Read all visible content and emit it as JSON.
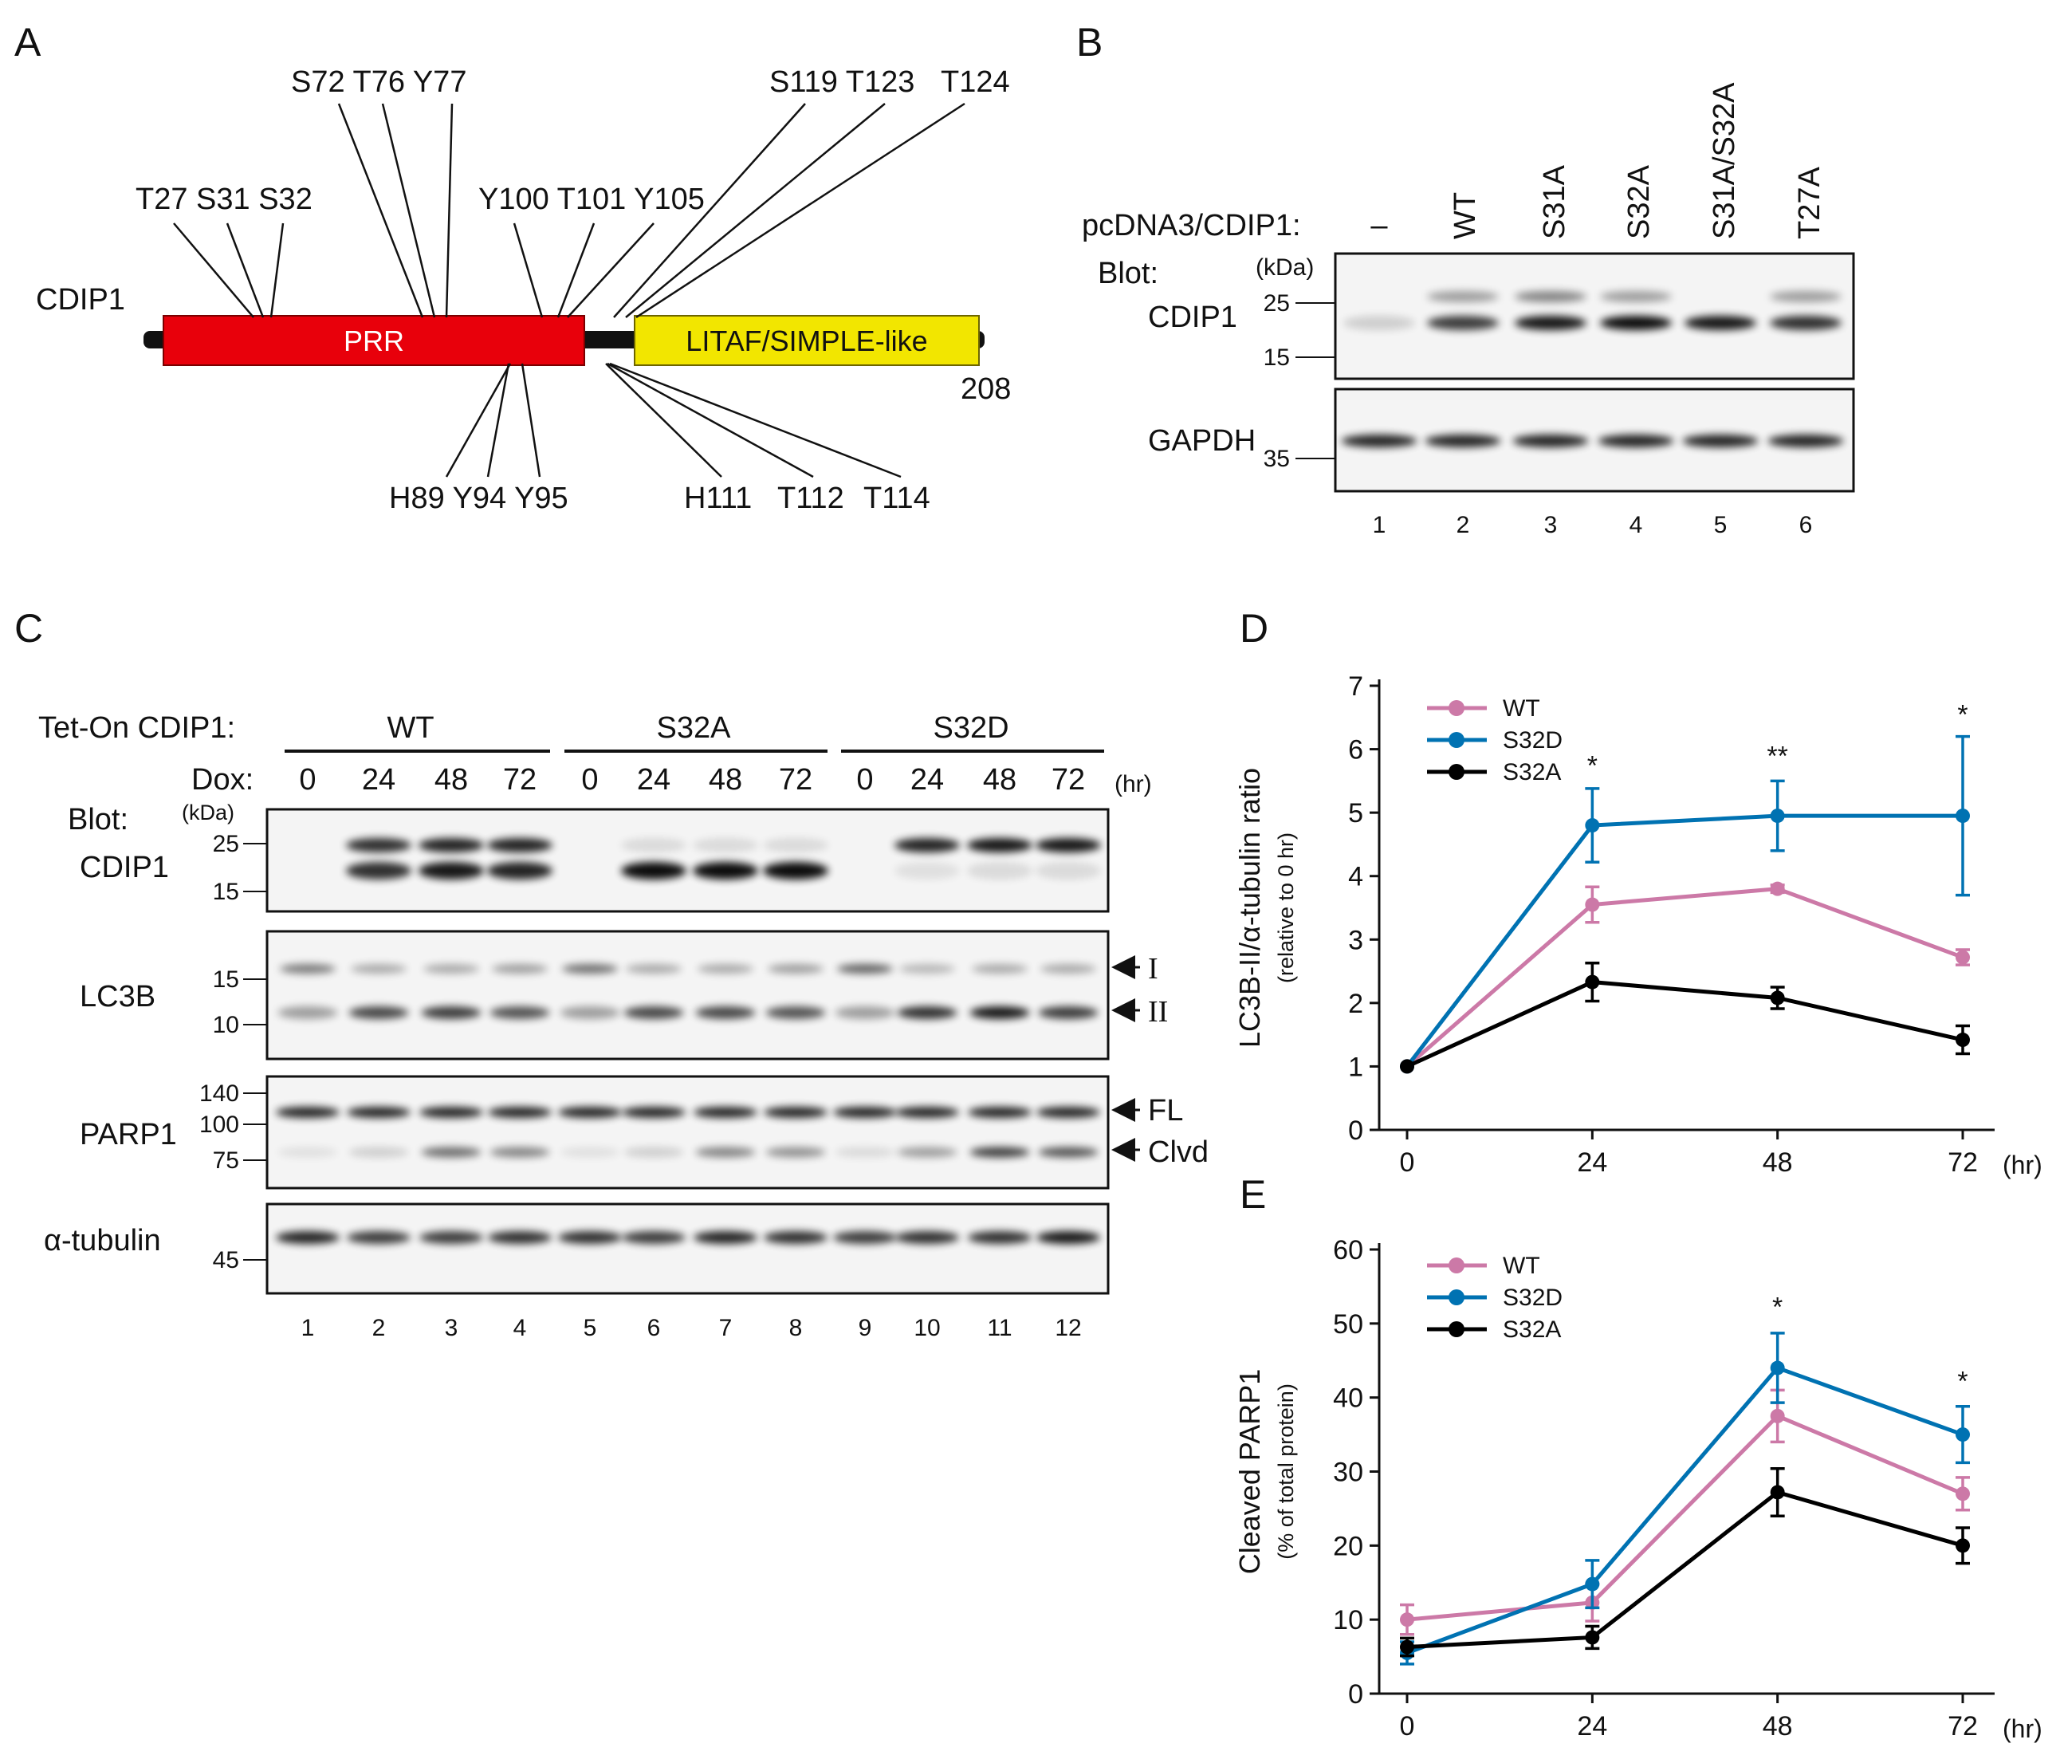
{
  "panel_letters": {
    "a": "A",
    "b": "B",
    "c": "C",
    "d": "D",
    "e": "E"
  },
  "panelA": {
    "protein": "CDIP1",
    "domain_prr": "PRR",
    "domain_litaf": "LITAF/SIMPLE-like",
    "end_residue": "208",
    "sites_top_1": "T27 S31 S32",
    "sites_top_2": "S72 T76 Y77",
    "sites_top_3": "Y100 T101 Y105",
    "sites_top_4": "S119 T123",
    "sites_top_5": "T124",
    "sites_bottom_1": "H89 Y94 Y95",
    "sites_bottom_2": "H111",
    "sites_bottom_3": "T112",
    "sites_bottom_4": "T114",
    "colors": {
      "prr": "#e8000b",
      "litaf": "#f2e600"
    }
  },
  "panelB": {
    "construct_label": "pcDNA3/CDIP1:",
    "lanes": [
      "–",
      "WT",
      "S31A",
      "S32A",
      "S31A/S32A",
      "T27A"
    ],
    "blot_label": "Blot:",
    "kda_label": "(kDa)",
    "blot1_name": "CDIP1",
    "blot2_name": "GAPDH",
    "markers1": [
      "25",
      "15"
    ],
    "markers2": [
      "35"
    ],
    "lane_numbers": [
      "1",
      "2",
      "3",
      "4",
      "5",
      "6"
    ]
  },
  "panelC": {
    "tet_label": "Tet-On CDIP1:",
    "groups": [
      "WT",
      "S32A",
      "S32D"
    ],
    "dox_label": "Dox:",
    "dox_times": [
      "0",
      "24",
      "48",
      "72",
      "0",
      "24",
      "48",
      "72",
      "0",
      "24",
      "48",
      "72"
    ],
    "unit": "(hr)",
    "blot_label": "Blot:",
    "kda_label": "(kDa)",
    "blots": {
      "cdip1": {
        "name": "CDIP1",
        "markers": [
          "25",
          "15"
        ]
      },
      "lc3b": {
        "name": "LC3B",
        "markers": [
          "15",
          "10"
        ],
        "arrows": [
          "I",
          "II"
        ]
      },
      "parp1": {
        "name": "PARP1",
        "markers": [
          "140",
          "100",
          "75"
        ],
        "arrows": [
          "FL",
          "Clvd"
        ]
      },
      "tubulin": {
        "name": "α-tubulin",
        "markers": [
          "45"
        ]
      }
    },
    "lane_numbers": [
      "1",
      "2",
      "3",
      "4",
      "5",
      "6",
      "7",
      "8",
      "9",
      "10",
      "11",
      "12"
    ]
  },
  "chart_data": [
    {
      "type": "line",
      "panel": "D",
      "ylabel": "LC3B-II/α-tubulin ratio",
      "ylabel_sub": "(relative to 0 hr)",
      "x": [
        0,
        24,
        48,
        72
      ],
      "xunit": "(hr)",
      "ylim": [
        0,
        7
      ],
      "yticks": [
        "0",
        "1",
        "2",
        "3",
        "4",
        "5",
        "6",
        "7"
      ],
      "xticks": [
        "0",
        "24",
        "48",
        "72"
      ],
      "series": [
        {
          "name": "WT",
          "color": "#cc79a7",
          "values": [
            1,
            3.55,
            3.8,
            2.72
          ],
          "err": [
            0,
            0.28,
            0.06,
            0.12
          ]
        },
        {
          "name": "S32D",
          "color": "#0072b2",
          "values": [
            1,
            4.8,
            4.95,
            4.95
          ],
          "err": [
            0,
            0.58,
            0.55,
            1.25
          ]
        },
        {
          "name": "S32A",
          "color": "#000000",
          "values": [
            1,
            2.33,
            2.08,
            1.42
          ],
          "err": [
            0,
            0.3,
            0.17,
            0.22
          ]
        }
      ],
      "annotations": [
        {
          "x": 24,
          "y": 5.6,
          "text": "*"
        },
        {
          "x": 48,
          "y": 5.75,
          "text": "**"
        },
        {
          "x": 72,
          "y": 6.4,
          "text": "*"
        }
      ]
    },
    {
      "type": "line",
      "panel": "E",
      "ylabel": "Cleaved PARP1",
      "ylabel_sub": "(% of total protein)",
      "x": [
        0,
        24,
        48,
        72
      ],
      "xunit": "(hr)",
      "ylim": [
        0,
        60
      ],
      "yticks": [
        "0",
        "10",
        "20",
        "30",
        "40",
        "50",
        "60"
      ],
      "xticks": [
        "0",
        "24",
        "48",
        "72"
      ],
      "series": [
        {
          "name": "WT",
          "color": "#cc79a7",
          "values": [
            10,
            12.3,
            37.5,
            27
          ],
          "err": [
            2,
            2.5,
            3.5,
            2.2
          ]
        },
        {
          "name": "S32D",
          "color": "#0072b2",
          "values": [
            5.5,
            14.8,
            44,
            35
          ],
          "err": [
            1.5,
            3.2,
            4.7,
            3.8
          ]
        },
        {
          "name": "S32A",
          "color": "#000000",
          "values": [
            6.3,
            7.6,
            27.2,
            20
          ],
          "err": [
            1.2,
            1.5,
            3.2,
            2.4
          ]
        }
      ],
      "annotations": [
        {
          "x": 48,
          "y": 51,
          "text": "*"
        },
        {
          "x": 72,
          "y": 41,
          "text": "*"
        }
      ]
    }
  ]
}
